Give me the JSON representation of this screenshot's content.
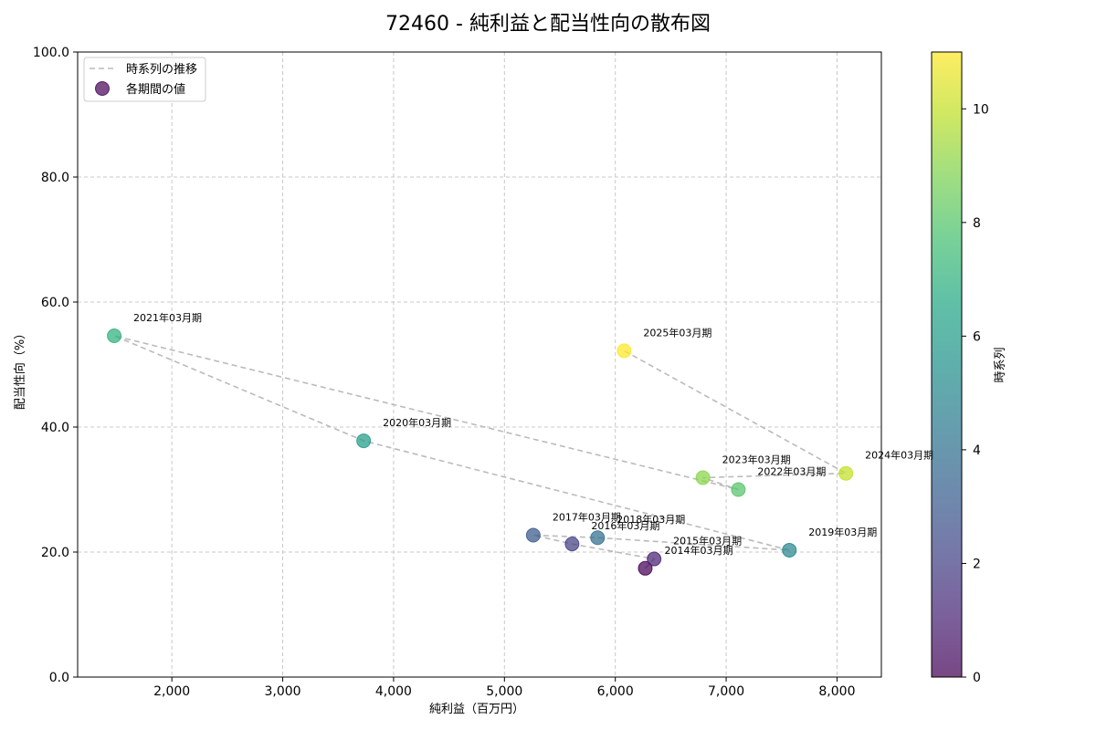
{
  "chart_data": {
    "type": "scatter",
    "title": "72460 - 純利益と配当性向の散布図",
    "xlabel": "純利益（百万円）",
    "ylabel": "配当性向（%）",
    "xlim": [
      1150,
      8400
    ],
    "ylim": [
      0,
      100
    ],
    "x_ticks": [
      2000,
      3000,
      4000,
      5000,
      6000,
      7000,
      8000
    ],
    "x_tick_labels": [
      "2,000",
      "3,000",
      "4,000",
      "5,000",
      "6,000",
      "7,000",
      "8,000"
    ],
    "y_ticks": [
      0,
      20,
      40,
      60,
      80,
      100
    ],
    "y_tick_labels": [
      "0.0",
      "20.0",
      "40.0",
      "60.0",
      "80.0",
      "100.0"
    ],
    "grid": true,
    "legend": {
      "location": "top-left",
      "line_label": "時系列の推移",
      "marker_label": "各期間の値"
    },
    "colorbar": {
      "label": "時系列",
      "min": 0,
      "max": 11,
      "ticks": [
        0,
        2,
        4,
        6,
        8,
        10
      ],
      "tick_labels": [
        "0",
        "2",
        "4",
        "6",
        "8",
        "10"
      ],
      "colormap": "viridis"
    },
    "points": [
      {
        "label": "2014年03月期",
        "x": 6270,
        "y": 17.4,
        "t": 0
      },
      {
        "label": "2015年03月期",
        "x": 6350,
        "y": 18.9,
        "t": 1
      },
      {
        "label": "2016年03月期",
        "x": 5610,
        "y": 21.3,
        "t": 2
      },
      {
        "label": "2017年03月期",
        "x": 5260,
        "y": 22.7,
        "t": 3
      },
      {
        "label": "2018年03月期",
        "x": 5840,
        "y": 22.3,
        "t": 4
      },
      {
        "label": "2019年03月期",
        "x": 7570,
        "y": 20.3,
        "t": 5
      },
      {
        "label": "2020年03月期",
        "x": 3730,
        "y": 37.8,
        "t": 6
      },
      {
        "label": "2021年03月期",
        "x": 1480,
        "y": 54.6,
        "t": 7
      },
      {
        "label": "2022年03月期",
        "x": 7110,
        "y": 30.0,
        "t": 8
      },
      {
        "label": "2023年03月期",
        "x": 6790,
        "y": 31.9,
        "t": 9
      },
      {
        "label": "2024年03月期",
        "x": 8080,
        "y": 32.6,
        "t": 10
      },
      {
        "label": "2025年03月期",
        "x": 6080,
        "y": 52.2,
        "t": 11
      }
    ]
  }
}
